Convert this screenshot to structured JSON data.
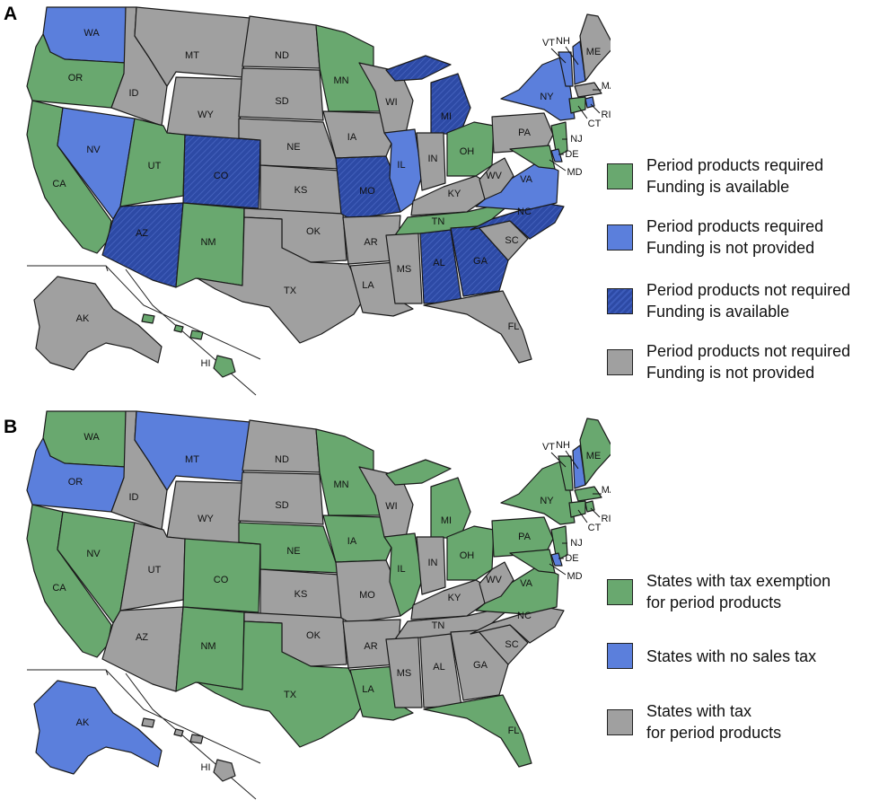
{
  "colors": {
    "green": "#69a86f",
    "blue": "#5b7fdc",
    "navy": "#2d4aa5",
    "gray": "#a0a0a0"
  },
  "panel_a": {
    "letter": "A",
    "legend": [
      {
        "color": "green",
        "line1": "Period products required",
        "line2": "Funding is available"
      },
      {
        "color": "blue",
        "line1": "Period products required",
        "line2": "Funding is not provided"
      },
      {
        "color": "navy",
        "line1": "Period products not required",
        "line2": "Funding is available"
      },
      {
        "color": "gray",
        "line1": "Period products not required",
        "line2": "Funding is not provided"
      }
    ],
    "states": {
      "WA": "blue",
      "OR": "green",
      "CA": "green",
      "NV": "blue",
      "ID": "gray",
      "MT": "gray",
      "WY": "gray",
      "UT": "green",
      "AZ": "navy",
      "CO": "navy",
      "NM": "green",
      "ND": "gray",
      "SD": "gray",
      "NE": "gray",
      "KS": "gray",
      "OK": "gray",
      "TX": "gray",
      "MN": "green",
      "IA": "gray",
      "MO": "navy",
      "AR": "gray",
      "LA": "gray",
      "WI": "gray",
      "IL": "blue",
      "MI": "navy",
      "IN": "gray",
      "OH": "green",
      "KY": "gray",
      "TN": "green",
      "MS": "gray",
      "AL": "navy",
      "GA": "navy",
      "FL": "gray",
      "SC": "gray",
      "NC": "navy",
      "VA": "blue",
      "WV": "gray",
      "PA": "gray",
      "NY": "blue",
      "VT": "blue",
      "NH": "blue",
      "ME": "gray",
      "MA": "gray",
      "RI": "blue",
      "CT": "green",
      "NJ": "green",
      "DE": "blue",
      "MD": "green",
      "AK": "gray",
      "HI": "green"
    }
  },
  "panel_b": {
    "letter": "B",
    "legend": [
      {
        "color": "green",
        "line1": "States with tax exemption",
        "line2": "for period products"
      },
      {
        "color": "blue",
        "line1": "States with no sales tax",
        "line2": ""
      },
      {
        "color": "gray",
        "line1": "States with tax",
        "line2": "for period products"
      }
    ],
    "states": {
      "WA": "green",
      "OR": "blue",
      "CA": "green",
      "NV": "green",
      "ID": "gray",
      "MT": "blue",
      "WY": "gray",
      "UT": "gray",
      "AZ": "gray",
      "CO": "green",
      "NM": "green",
      "ND": "gray",
      "SD": "gray",
      "NE": "green",
      "KS": "gray",
      "OK": "gray",
      "TX": "green",
      "MN": "green",
      "IA": "green",
      "MO": "gray",
      "AR": "gray",
      "LA": "green",
      "WI": "gray",
      "IL": "green",
      "MI": "green",
      "IN": "gray",
      "OH": "green",
      "KY": "gray",
      "TN": "gray",
      "MS": "gray",
      "AL": "gray",
      "GA": "gray",
      "FL": "green",
      "SC": "gray",
      "NC": "gray",
      "VA": "green",
      "WV": "gray",
      "PA": "green",
      "NY": "green",
      "VT": "green",
      "NH": "blue",
      "ME": "green",
      "MA": "green",
      "RI": "green",
      "CT": "green",
      "NJ": "green",
      "DE": "blue",
      "MD": "green",
      "AK": "blue",
      "HI": "gray"
    }
  }
}
